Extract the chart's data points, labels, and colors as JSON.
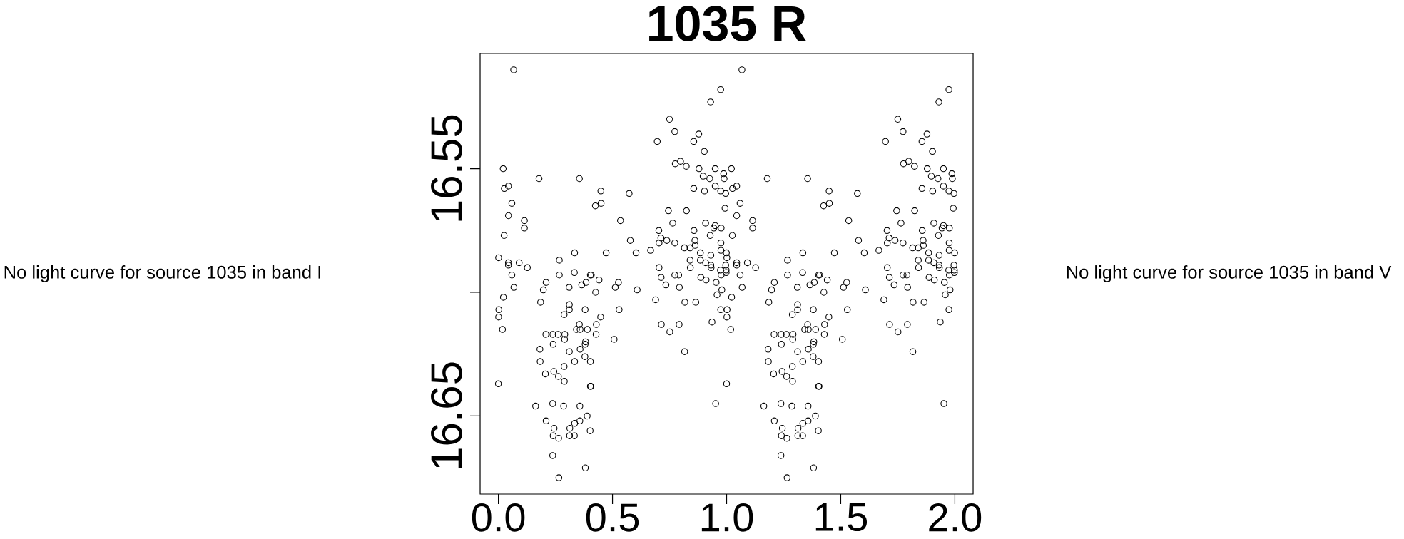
{
  "chart_data": {
    "type": "scatter",
    "title": "1035 R",
    "color": "#000000",
    "marker": "circle",
    "x": [
      0.067,
      0.974,
      0.93,
      0.75,
      0.773,
      0.878,
      0.696,
      0.856,
      0.902,
      0.775,
      0.798,
      0.823,
      0.021,
      0.879,
      0.95,
      0.987,
      0.897,
      0.926,
      0.989,
      0.178,
      0.355,
      0.026,
      0.044,
      0.856,
      0.95,
      0.903,
      0.974,
      0.996,
      0.449,
      0.573,
      0.059,
      0.425,
      0.45,
      0.993,
      0.044,
      0.114,
      0.114,
      0.535,
      0.745,
      0.824,
      0.025,
      0.764,
      0.908,
      0.703,
      0.712,
      0.704,
      0.738,
      0.773,
      0.578,
      0.857,
      0.95,
      0.944,
      0.976,
      0.928,
      0.861,
      0.862,
      0.815,
      0.84,
      0.975,
      0.975,
      0.999,
      0.885,
      0.931,
      0.84,
      0.885,
      0.908,
      0.931,
      0.932,
      0.841,
      0.996,
      0.973,
      0.998,
      0.998,
      0.976,
      0.704,
      0.713,
      0.773,
      0.79,
      0.887,
      0.91,
      0.001,
      0.044,
      0.044,
      0.091,
      0.127,
      0.059,
      0.267,
      0.334,
      0.472,
      0.603,
      0.667,
      0.267,
      0.333,
      0.403,
      0.407,
      0.441,
      0.068,
      0.209,
      0.197,
      0.31,
      0.365,
      0.384,
      0.426,
      0.526,
      0.512,
      0.608,
      0.734,
      0.793,
      0.954,
      0.979,
      0.958,
      0.689,
      0.817,
      0.865,
      0.022,
      0.002,
      0.001,
      0.018,
      0.185,
      0.311,
      0.311,
      0.288,
      0.38,
      0.529,
      0.448,
      0.429,
      0.355,
      0.342,
      0.358,
      0.39,
      0.428,
      0.208,
      0.239,
      0.262,
      0.291,
      0.29,
      0.507,
      0.24,
      0.382,
      0.38,
      0.182,
      0.311,
      0.358,
      0.183,
      0.334,
      0.379,
      0.403,
      0.288,
      0.206,
      0.243,
      0.263,
      0.289,
      0.0,
      0.403,
      0.405,
      0.952,
      0.714,
      0.792,
      0.751,
      0.816,
      0.974,
      0.936,
      0.163,
      0.238,
      0.286,
      0.357,
      0.389,
      0.209,
      0.357,
      0.334,
      0.244,
      0.313,
      0.402,
      0.24,
      0.264,
      0.312,
      0.333,
      0.238,
      0.381,
      0.265,
      1.067,
      1.974,
      1.93,
      1.75,
      1.773,
      1.878,
      1.696,
      1.856,
      1.902,
      1.775,
      1.798,
      1.823,
      1.021,
      1.879,
      1.95,
      1.987,
      1.897,
      1.926,
      1.989,
      1.178,
      1.355,
      1.026,
      1.044,
      1.856,
      1.95,
      1.903,
      1.974,
      1.996,
      1.449,
      1.573,
      1.059,
      1.425,
      1.45,
      1.993,
      1.044,
      1.114,
      1.114,
      1.535,
      1.745,
      1.824,
      1.025,
      1.764,
      1.908,
      1.703,
      1.712,
      1.704,
      1.738,
      1.773,
      1.578,
      1.857,
      1.95,
      1.944,
      1.976,
      1.928,
      1.861,
      1.862,
      1.815,
      1.84,
      1.975,
      1.975,
      1.999,
      1.885,
      1.931,
      1.84,
      1.885,
      1.908,
      1.931,
      1.932,
      1.841,
      1.996,
      1.973,
      1.998,
      1.998,
      1.976,
      1.704,
      1.713,
      1.773,
      1.79,
      1.887,
      1.91,
      1.001,
      1.044,
      1.044,
      1.091,
      1.127,
      1.059,
      1.267,
      1.334,
      1.472,
      1.603,
      1.667,
      1.267,
      1.333,
      1.403,
      1.407,
      1.441,
      1.068,
      1.209,
      1.197,
      1.31,
      1.365,
      1.384,
      1.426,
      1.526,
      1.512,
      1.608,
      1.734,
      1.793,
      1.954,
      1.979,
      1.958,
      1.689,
      1.817,
      1.865,
      1.022,
      1.002,
      1.001,
      1.018,
      1.185,
      1.311,
      1.311,
      1.288,
      1.38,
      1.529,
      1.448,
      1.429,
      1.355,
      1.342,
      1.358,
      1.39,
      1.428,
      1.208,
      1.239,
      1.262,
      1.291,
      1.29,
      1.507,
      1.24,
      1.382,
      1.38,
      1.182,
      1.311,
      1.358,
      1.183,
      1.334,
      1.379,
      1.403,
      1.288,
      1.206,
      1.243,
      1.263,
      1.289,
      1.0,
      1.403,
      1.405,
      1.952,
      1.714,
      1.792,
      1.751,
      1.816,
      1.974,
      1.936,
      1.163,
      1.238,
      1.286,
      1.357,
      1.389,
      1.209,
      1.357,
      1.334,
      1.244,
      1.313,
      1.402,
      1.24,
      1.264,
      1.312,
      1.333,
      1.238,
      1.381,
      1.265
    ],
    "values": [
      16.51,
      16.518,
      16.523,
      16.53,
      16.535,
      16.536,
      16.539,
      16.539,
      16.543,
      16.548,
      16.547,
      16.549,
      16.55,
      16.55,
      16.55,
      16.552,
      16.553,
      16.554,
      16.554,
      16.554,
      16.554,
      16.558,
      16.557,
      16.558,
      16.557,
      16.559,
      16.559,
      16.56,
      16.559,
      16.56,
      16.564,
      16.565,
      16.564,
      16.566,
      16.569,
      16.571,
      16.574,
      16.571,
      16.567,
      16.567,
      16.577,
      16.572,
      16.572,
      16.575,
      16.578,
      16.58,
      16.579,
      16.58,
      16.579,
      16.575,
      16.573,
      16.574,
      16.574,
      16.577,
      16.579,
      16.581,
      16.582,
      16.582,
      16.58,
      16.583,
      16.584,
      16.584,
      16.585,
      16.587,
      16.587,
      16.588,
      16.589,
      16.59,
      16.59,
      16.589,
      16.591,
      16.591,
      16.592,
      16.593,
      16.59,
      16.594,
      16.593,
      16.593,
      16.594,
      16.595,
      16.586,
      16.588,
      16.589,
      16.588,
      16.59,
      16.593,
      16.587,
      16.584,
      16.584,
      16.584,
      16.583,
      16.593,
      16.592,
      16.593,
      16.593,
      16.595,
      16.598,
      16.596,
      16.599,
      16.598,
      16.597,
      16.596,
      16.6,
      16.596,
      16.598,
      16.599,
      16.597,
      16.598,
      16.596,
      16.599,
      16.601,
      16.603,
      16.604,
      16.604,
      16.602,
      16.607,
      16.61,
      16.615,
      16.604,
      16.605,
      16.607,
      16.609,
      16.607,
      16.607,
      16.61,
      16.613,
      16.613,
      16.615,
      16.615,
      16.615,
      16.617,
      16.617,
      16.617,
      16.617,
      16.617,
      16.619,
      16.619,
      16.621,
      16.62,
      16.621,
      16.623,
      16.624,
      16.623,
      16.628,
      16.628,
      16.626,
      16.628,
      16.63,
      16.633,
      16.632,
      16.634,
      16.636,
      16.637,
      16.638,
      16.638,
      16.645,
      16.613,
      16.613,
      16.616,
      16.624,
      16.607,
      16.612,
      16.646,
      16.645,
      16.646,
      16.646,
      16.65,
      16.652,
      16.652,
      16.653,
      16.655,
      16.655,
      16.656,
      16.658,
      16.659,
      16.658,
      16.658,
      16.666,
      16.671,
      16.675,
      16.51,
      16.518,
      16.523,
      16.53,
      16.535,
      16.536,
      16.539,
      16.539,
      16.543,
      16.548,
      16.547,
      16.549,
      16.55,
      16.55,
      16.55,
      16.552,
      16.553,
      16.554,
      16.554,
      16.554,
      16.554,
      16.558,
      16.557,
      16.558,
      16.557,
      16.559,
      16.559,
      16.56,
      16.559,
      16.56,
      16.564,
      16.565,
      16.564,
      16.566,
      16.569,
      16.571,
      16.574,
      16.571,
      16.567,
      16.567,
      16.577,
      16.572,
      16.572,
      16.575,
      16.578,
      16.58,
      16.579,
      16.58,
      16.579,
      16.575,
      16.573,
      16.574,
      16.574,
      16.577,
      16.579,
      16.581,
      16.582,
      16.582,
      16.58,
      16.583,
      16.584,
      16.584,
      16.585,
      16.587,
      16.587,
      16.588,
      16.589,
      16.59,
      16.59,
      16.589,
      16.591,
      16.591,
      16.592,
      16.593,
      16.59,
      16.594,
      16.593,
      16.593,
      16.594,
      16.595,
      16.586,
      16.588,
      16.589,
      16.588,
      16.59,
      16.593,
      16.587,
      16.584,
      16.584,
      16.584,
      16.583,
      16.593,
      16.592,
      16.593,
      16.593,
      16.595,
      16.598,
      16.596,
      16.599,
      16.598,
      16.597,
      16.596,
      16.6,
      16.596,
      16.598,
      16.599,
      16.597,
      16.598,
      16.596,
      16.599,
      16.601,
      16.603,
      16.604,
      16.604,
      16.602,
      16.607,
      16.61,
      16.615,
      16.604,
      16.605,
      16.607,
      16.609,
      16.607,
      16.607,
      16.61,
      16.613,
      16.613,
      16.615,
      16.615,
      16.615,
      16.617,
      16.617,
      16.617,
      16.617,
      16.617,
      16.619,
      16.619,
      16.621,
      16.62,
      16.621,
      16.623,
      16.624,
      16.623,
      16.628,
      16.628,
      16.626,
      16.628,
      16.63,
      16.633,
      16.632,
      16.634,
      16.636,
      16.637,
      16.638,
      16.638,
      16.645,
      16.613,
      16.613,
      16.616,
      16.624,
      16.607,
      16.612,
      16.646,
      16.645,
      16.646,
      16.646,
      16.65,
      16.652,
      16.652,
      16.653,
      16.655,
      16.655,
      16.656,
      16.658,
      16.659,
      16.658,
      16.658,
      16.666,
      16.671,
      16.675
    ],
    "xlim": [
      -0.08,
      2.08
    ],
    "ylim": [
      16.6816,
      16.5034
    ],
    "xticks": [
      {
        "value": 0,
        "label": "0.0"
      },
      0.5,
      {
        "value": 1,
        "label": "1.0"
      },
      1.5,
      {
        "value": 2,
        "label": "2.0"
      }
    ],
    "yticks": [
      16.55,
      {
        "value": 16.6,
        "label": null
      },
      16.65
    ],
    "annotations": [
      "No light curve for source 1035 in band I",
      "No light curve for source 1035 in band V"
    ]
  }
}
